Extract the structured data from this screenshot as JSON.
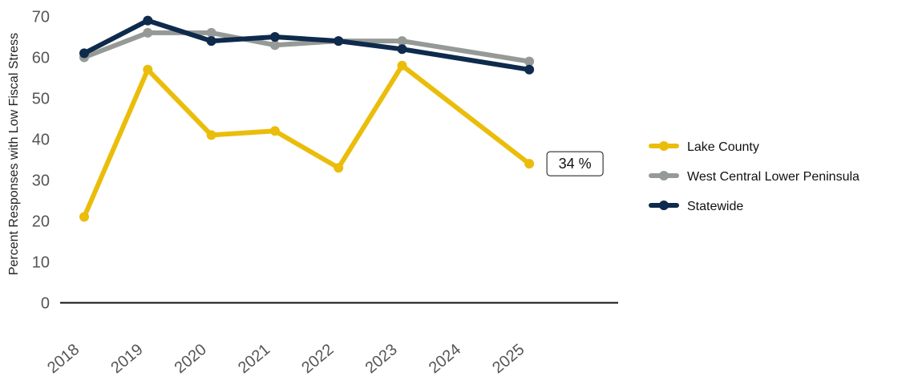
{
  "chart_data": {
    "type": "line",
    "title": "",
    "xlabel": "",
    "ylabel": "Percent Responses with Low Fiscal Stress",
    "x": [
      "2018",
      "2019",
      "2020",
      "2021",
      "2022",
      "2023",
      "2024",
      "2025"
    ],
    "ylim": [
      0,
      70
    ],
    "yticks": [
      "0",
      "10",
      "20",
      "30",
      "40",
      "50",
      "60",
      "70"
    ],
    "grid": false,
    "legend_position": "right",
    "series": [
      {
        "name": "Lake County",
        "color": "#ebbd0b",
        "values": [
          21,
          57,
          41,
          42,
          33,
          58,
          null,
          34
        ]
      },
      {
        "name": "West Central Lower Peninsula",
        "color": "#969a96",
        "values": [
          60,
          66,
          66,
          63,
          64,
          64,
          null,
          59
        ]
      },
      {
        "name": "Statewide",
        "color": "#0e2a4d",
        "values": [
          61,
          69,
          64,
          65,
          64,
          62,
          null,
          57
        ]
      }
    ],
    "annotation": {
      "text": "34 %",
      "series": "Lake County",
      "x": "2025",
      "value": 34
    }
  }
}
